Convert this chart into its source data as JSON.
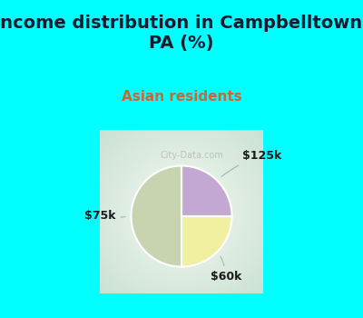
{
  "title": "Income distribution in Campbelltown,\nPA (%)",
  "subtitle": "Asian residents",
  "title_color": "#1a1a2e",
  "title_bg_color": "#00FFFF",
  "subtitle_color": "#cc6633",
  "chart_bg_gradient": [
    "#e8f5ee",
    "#d0ece0"
  ],
  "slices": [
    {
      "label": "$125k",
      "value": 25,
      "color": "#c4a8d4"
    },
    {
      "label": "$60k",
      "value": 25,
      "color": "#f0f0a0"
    },
    {
      "label": "$75k",
      "value": 50,
      "color": "#c8d4b0"
    }
  ],
  "watermark": "City-Data.com",
  "label_fontsize": 9,
  "title_fontsize": 14,
  "subtitle_fontsize": 11
}
